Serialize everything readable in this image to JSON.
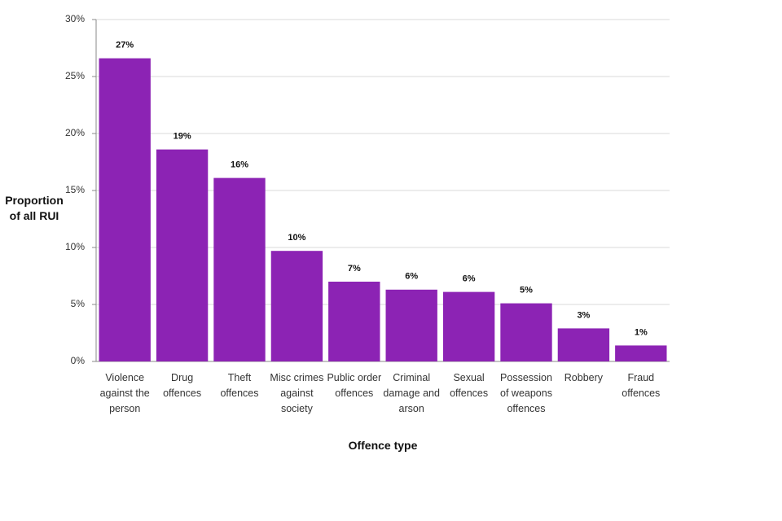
{
  "chart_data": {
    "type": "bar",
    "x_label": "Offence type",
    "y_label": "Proportion of all RUI",
    "categories": [
      "Violence against the person",
      "Drug offences",
      "Theft offences",
      "Misc crimes against society",
      "Public order offences",
      "Criminal damage and arson",
      "Sexual offences",
      "Possession of weapons offences",
      "Robbery",
      "Fraud offences"
    ],
    "values": [
      26.6,
      18.6,
      16.1,
      9.7,
      7.0,
      6.3,
      6.1,
      5.1,
      2.9,
      1.4
    ],
    "value_labels": [
      "27%",
      "19%",
      "16%",
      "10%",
      "7%",
      "6%",
      "6%",
      "5%",
      "3%",
      "1%"
    ],
    "color": "#8c23b4",
    "ylim": [
      0,
      30
    ],
    "yticks": [
      {
        "value": 0,
        "label": "0%"
      },
      {
        "value": 5,
        "label": "5%"
      },
      {
        "value": 10,
        "label": "10%"
      },
      {
        "value": 15,
        "label": "15%"
      },
      {
        "value": 20,
        "label": "20%"
      },
      {
        "value": 25,
        "label": "25%"
      },
      {
        "value": 30,
        "label": "30%"
      }
    ],
    "grid": true
  }
}
